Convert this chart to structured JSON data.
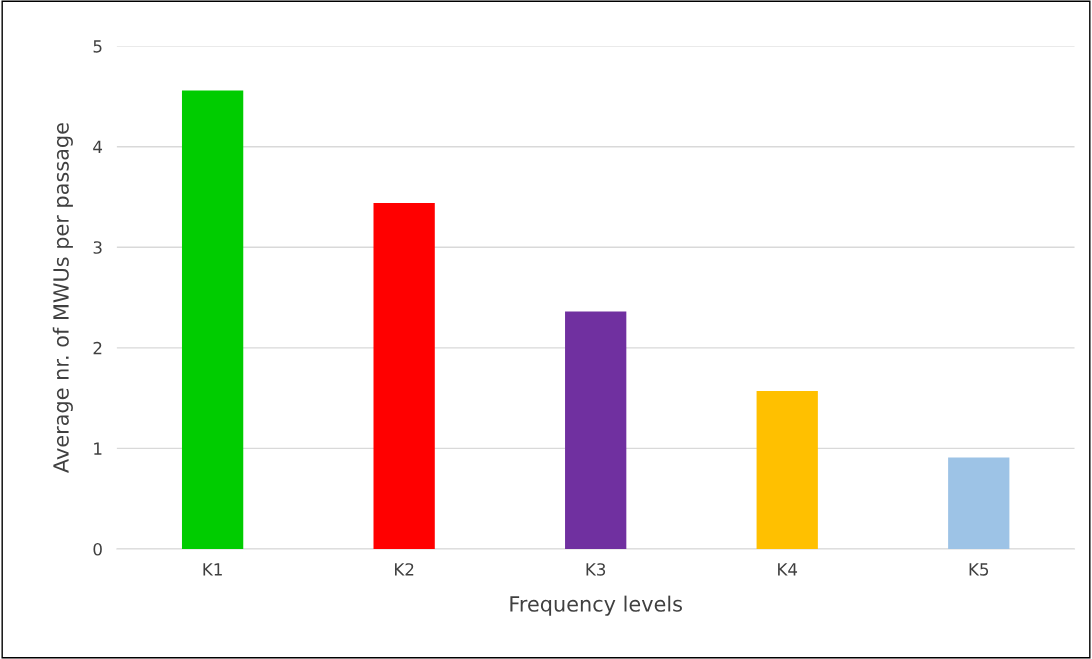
{
  "chart_data": {
    "type": "bar",
    "xlabel": "Frequency levels",
    "ylabel": "Average nr. of MWUs per passage",
    "categories": [
      "K1",
      "K2",
      "K3",
      "K4",
      "K5"
    ],
    "values": [
      4.56,
      3.44,
      2.36,
      1.57,
      0.91
    ],
    "colors": [
      "#00cc00",
      "#ff0000",
      "#7030a0",
      "#ffc000",
      "#9dc3e6"
    ],
    "ylim": [
      0,
      5
    ],
    "yticks": [
      0,
      1,
      2,
      3,
      4,
      5
    ],
    "grid": "y",
    "legend": false
  }
}
